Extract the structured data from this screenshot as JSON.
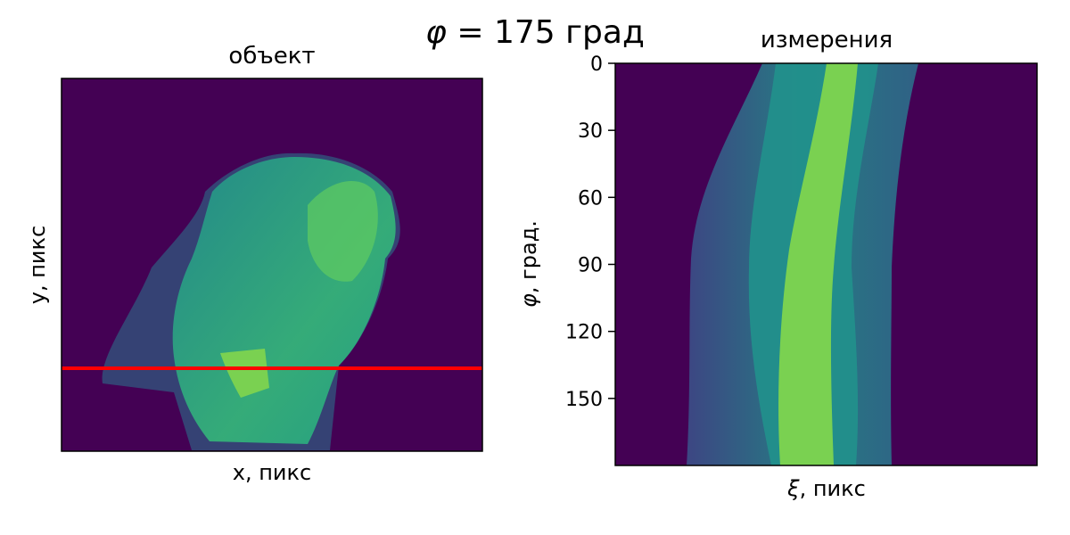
{
  "figure": {
    "suptitle_var": "φ",
    "suptitle_rest": " = 175 град"
  },
  "chart_data": [
    {
      "type": "heatmap",
      "title": "объект",
      "xlabel": "x, пикс",
      "ylabel": "y, пикс",
      "x_ticks": [],
      "y_ticks": [],
      "colormap": "viridis",
      "marker_line": {
        "color": "#ff0000",
        "orientation": "horizontal",
        "y_fraction_from_top": 0.78
      }
    },
    {
      "type": "heatmap",
      "title": "измерения",
      "xlabel": "ξ, пикс",
      "xlabel_var": "ξ",
      "xlabel_rest": ", пикс",
      "ylabel": "φ, град.",
      "ylabel_var": "φ",
      "ylabel_rest": ", град.",
      "x_ticks": [],
      "ylim": [
        0,
        180
      ],
      "y_inverted": true,
      "y_ticks": [
        0,
        30,
        60,
        90,
        120,
        150
      ],
      "colormap": "viridis"
    }
  ],
  "colors": {
    "background": "#440154",
    "mid": "#21918c",
    "teal": "#2a788e",
    "bright": "#7ad151",
    "marker": "#ff0000"
  }
}
